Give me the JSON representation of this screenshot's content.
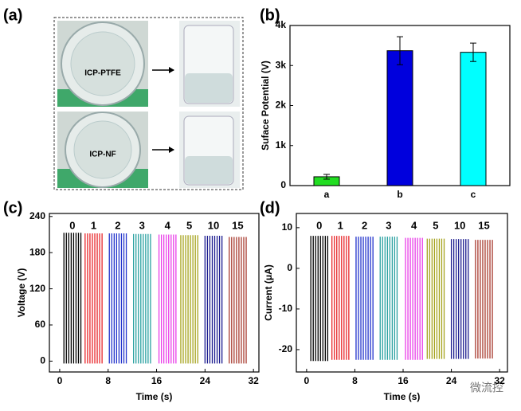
{
  "panels": [
    "(a)",
    "(b)",
    "(c)",
    "(d)"
  ],
  "photo_labels": [
    "ICP-PTFE",
    "ICP-NF"
  ],
  "watermark": "微流控",
  "chart_data": [
    {
      "type": "bar",
      "ylabel": "Suface Potential (V)",
      "categories": [
        "a",
        "b",
        "c"
      ],
      "values": [
        220,
        3370,
        3330
      ],
      "errors": [
        60,
        350,
        230
      ],
      "colors": [
        "#22dd22",
        "#0000dd",
        "#00ffff"
      ],
      "ylim": [
        0,
        4000
      ],
      "yticks": [
        0,
        {
          "value": 1000,
          "label": "1k"
        },
        {
          "value": 2000,
          "label": "2k"
        },
        {
          "value": 3000,
          "label": "3k"
        },
        {
          "value": 4000,
          "label": "4k"
        }
      ]
    },
    {
      "type": "spikes",
      "xlabel": "Time (s)",
      "ylabel": "Voltage (V)",
      "xlim": [
        -1.7,
        32.9
      ],
      "ylim": [
        -18,
        245
      ],
      "xticks": [
        0,
        8,
        16,
        24,
        32
      ],
      "yticks": [
        0,
        60,
        120,
        180,
        240
      ],
      "series": [
        {
          "name": "0",
          "color": "#000000",
          "x": [
            0.7,
            1.1,
            1.5,
            1.9,
            2.3,
            2.7,
            3.1,
            3.5
          ],
          "values": [
            213,
            213,
            213,
            213,
            213,
            213,
            213,
            213
          ]
        },
        {
          "name": "1",
          "color": "#e8262a",
          "x": [
            4.2,
            4.6,
            5.0,
            5.4,
            5.8,
            6.2,
            6.6,
            7.0
          ],
          "values": [
            212,
            212,
            212,
            212,
            212,
            212,
            212,
            212
          ]
        },
        {
          "name": "2",
          "color": "#2233cc",
          "x": [
            8.2,
            8.6,
            9.0,
            9.4,
            9.8,
            10.2,
            10.6,
            11.0
          ],
          "values": [
            212,
            212,
            212,
            212,
            212,
            212,
            212,
            212
          ]
        },
        {
          "name": "3",
          "color": "#2aa1a1",
          "x": [
            12.2,
            12.6,
            13.0,
            13.4,
            13.8,
            14.2,
            14.6,
            15.0
          ],
          "values": [
            211,
            211,
            211,
            211,
            211,
            211,
            211,
            211
          ]
        },
        {
          "name": "4",
          "color": "#e93ee8",
          "x": [
            16.4,
            16.8,
            17.2,
            17.6,
            18.0,
            18.4,
            18.8,
            19.2
          ],
          "values": [
            210,
            210,
            210,
            210,
            210,
            210,
            210,
            210
          ]
        },
        {
          "name": "5",
          "color": "#a5a31c",
          "x": [
            20.0,
            20.4,
            20.8,
            21.2,
            21.6,
            22.0,
            22.4,
            22.8
          ],
          "values": [
            209,
            209,
            209,
            209,
            209,
            209,
            209,
            209
          ]
        },
        {
          "name": "10",
          "color": "#1b1b8f",
          "x": [
            24.0,
            24.4,
            24.8,
            25.2,
            25.6,
            26.0,
            26.4,
            26.8
          ],
          "values": [
            208,
            208,
            208,
            208,
            208,
            208,
            208,
            208
          ]
        },
        {
          "name": "15",
          "color": "#a83a2f",
          "x": [
            28.0,
            28.4,
            28.8,
            29.2,
            29.6,
            30.0,
            30.4,
            30.8
          ],
          "values": [
            206,
            206,
            206,
            206,
            206,
            206,
            206,
            206
          ]
        }
      ]
    },
    {
      "type": "spikes",
      "xlabel": "Time (s)",
      "ylabel": "Current (μA)",
      "xlim": [
        -1.7,
        33.3
      ],
      "ylim": [
        -25.5,
        13.5
      ],
      "xticks": [
        0,
        8,
        16,
        24,
        32
      ],
      "yticks": [
        -20,
        -10,
        0,
        10
      ],
      "series": [
        {
          "name": "0",
          "color": "#000000",
          "x": [
            0.7,
            1.1,
            1.5,
            1.9,
            2.3,
            2.7,
            3.1,
            3.5
          ],
          "values": [
            8,
            8,
            8,
            8,
            8,
            8,
            8,
            8
          ],
          "lows": [
            -22.8,
            -22.8,
            -22.8,
            -22.8,
            -22.8,
            -22.8,
            -22.8,
            -22.8
          ]
        },
        {
          "name": "1",
          "color": "#e8262a",
          "x": [
            4.2,
            4.6,
            5.0,
            5.4,
            5.8,
            6.2,
            6.6,
            7.0
          ],
          "values": [
            8,
            8,
            8,
            8,
            8,
            8,
            8,
            8
          ],
          "lows": [
            -22.5,
            -22.5,
            -22.5,
            -22.5,
            -22.5,
            -22.5,
            -22.5,
            -22.5
          ]
        },
        {
          "name": "2",
          "color": "#2233cc",
          "x": [
            8.2,
            8.6,
            9.0,
            9.4,
            9.8,
            10.2,
            10.6,
            11.0
          ],
          "values": [
            7.8,
            7.8,
            7.8,
            7.8,
            7.8,
            7.8,
            7.8,
            7.8
          ],
          "lows": [
            -22.5,
            -22.5,
            -22.5,
            -22.5,
            -22.5,
            -22.5,
            -22.5,
            -22.5
          ]
        },
        {
          "name": "3",
          "color": "#2aa1a1",
          "x": [
            12.2,
            12.6,
            13.0,
            13.4,
            13.8,
            14.2,
            14.6,
            15.0
          ],
          "values": [
            7.8,
            7.8,
            7.8,
            7.8,
            7.8,
            7.8,
            7.8,
            7.8
          ],
          "lows": [
            -22.5,
            -22.5,
            -22.5,
            -22.5,
            -22.5,
            -22.5,
            -22.5,
            -22.5
          ]
        },
        {
          "name": "4",
          "color": "#e93ee8",
          "x": [
            16.4,
            16.8,
            17.2,
            17.6,
            18.0,
            18.4,
            18.8,
            19.2
          ],
          "values": [
            7.5,
            7.5,
            7.5,
            7.5,
            7.5,
            7.5,
            7.5,
            7.5
          ],
          "lows": [
            -22.5,
            -22.5,
            -22.5,
            -22.5,
            -22.5,
            -22.5,
            -22.5,
            -22.5
          ]
        },
        {
          "name": "5",
          "color": "#a5a31c",
          "x": [
            20.0,
            20.4,
            20.8,
            21.2,
            21.6,
            22.0,
            22.4,
            22.8
          ],
          "values": [
            7.3,
            7.3,
            7.3,
            7.3,
            7.3,
            7.3,
            7.3,
            7.3
          ],
          "lows": [
            -22.3,
            -22.3,
            -22.3,
            -22.3,
            -22.3,
            -22.3,
            -22.3,
            -22.3
          ]
        },
        {
          "name": "10",
          "color": "#1b1b8f",
          "x": [
            24.0,
            24.4,
            24.8,
            25.2,
            25.6,
            26.0,
            26.4,
            26.8
          ],
          "values": [
            7.2,
            7.2,
            7.2,
            7.2,
            7.2,
            7.2,
            7.2,
            7.2
          ],
          "lows": [
            -22.3,
            -22.3,
            -22.3,
            -22.3,
            -22.3,
            -22.3,
            -22.3,
            -22.3
          ]
        },
        {
          "name": "15",
          "color": "#a83a2f",
          "x": [
            28.0,
            28.4,
            28.8,
            29.2,
            29.6,
            30.0,
            30.4,
            30.8
          ],
          "values": [
            7.0,
            7.0,
            7.0,
            7.0,
            7.0,
            7.0,
            7.0,
            7.0
          ],
          "lows": [
            -22.2,
            -22.2,
            -22.2,
            -22.2,
            -22.2,
            -22.2,
            -22.2,
            -22.2
          ]
        }
      ]
    }
  ]
}
